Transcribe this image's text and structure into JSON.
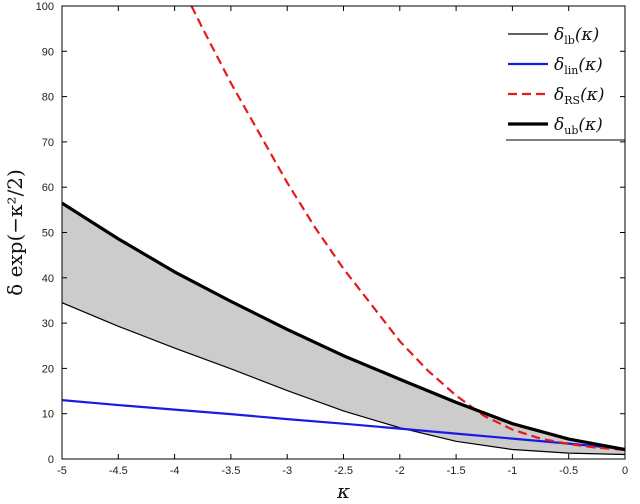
{
  "chart_data": {
    "type": "line",
    "title": "",
    "xlabel": "κ",
    "ylabel": "δ exp(−κ²/2)",
    "xlim": [
      -5,
      0
    ],
    "ylim": [
      0,
      100
    ],
    "x_ticks": [
      -5,
      -4.5,
      -4,
      -3.5,
      -3,
      -2.5,
      -2,
      -1.5,
      -1,
      -0.5,
      0
    ],
    "x_tick_labels": [
      "-5",
      "-4.5",
      "-4",
      "-3.5",
      "-3",
      "-2.5",
      "-2",
      "-1.5",
      "-1",
      "-0.5",
      "0"
    ],
    "y_ticks": [
      0,
      10,
      20,
      30,
      40,
      50,
      60,
      70,
      80,
      90,
      100
    ],
    "y_tick_labels": [
      "0",
      "10",
      "20",
      "30",
      "40",
      "50",
      "60",
      "70",
      "80",
      "90",
      "100"
    ],
    "grid": false,
    "legend_position": "top-right",
    "shaded_region": {
      "between": [
        "δ_lb(κ)",
        "δ_ub(κ)"
      ],
      "color": "#cccccc"
    },
    "series": [
      {
        "name": "δ_lb(κ)",
        "legend_symbol": "δ",
        "legend_sub": "lb",
        "legend_arg": "(κ)",
        "color": "#000000",
        "style": "solid",
        "width": "thin",
        "x": [
          -5,
          -4.5,
          -4,
          -3.5,
          -3,
          -2.5,
          -2,
          -1.5,
          -1,
          -0.5,
          0
        ],
        "y": [
          34.5,
          29.3,
          24.5,
          19.9,
          15.1,
          10.6,
          6.9,
          3.9,
          2.1,
          1.3,
          1.0
        ]
      },
      {
        "name": "δ_lin(κ)",
        "legend_symbol": "δ",
        "legend_sub": "lin",
        "legend_arg": "(κ)",
        "color": "#1a1ae6",
        "style": "solid",
        "width": "normal",
        "x": [
          -5,
          -4.5,
          -4,
          -3.5,
          -3,
          -2.5,
          -2,
          -1.5,
          -1,
          -0.5,
          0
        ],
        "y": [
          13.0,
          11.9,
          10.9,
          9.9,
          8.8,
          7.8,
          6.7,
          5.6,
          4.5,
          3.4,
          2.2
        ]
      },
      {
        "name": "δ_RS(κ)",
        "legend_symbol": "δ",
        "legend_sub": "RS",
        "legend_arg": "(κ)",
        "color": "#e61a1a",
        "style": "dashed",
        "width": "normal",
        "x": [
          -3.85,
          -3.75,
          -3.5,
          -3.25,
          -3,
          -2.75,
          -2.5,
          -2.25,
          -2,
          -1.75,
          -1.5,
          -1.25,
          -1,
          -0.75,
          -0.5,
          -0.25,
          0
        ],
        "y": [
          100,
          95,
          83,
          72,
          61,
          51,
          42,
          34,
          26,
          19.5,
          14.0,
          9.5,
          6.5,
          4.5,
          3.3,
          2.5,
          2.0
        ]
      },
      {
        "name": "δ_ub(κ)",
        "legend_symbol": "δ",
        "legend_sub": "ub",
        "legend_arg": "(κ)",
        "color": "#000000",
        "style": "solid",
        "width": "thick",
        "x": [
          -5,
          -4.5,
          -4,
          -3.5,
          -3,
          -2.5,
          -2,
          -1.5,
          -1,
          -0.5,
          0
        ],
        "y": [
          56.5,
          48.6,
          41.3,
          34.8,
          28.6,
          22.8,
          17.6,
          12.5,
          7.8,
          4.4,
          2.1
        ]
      }
    ]
  }
}
